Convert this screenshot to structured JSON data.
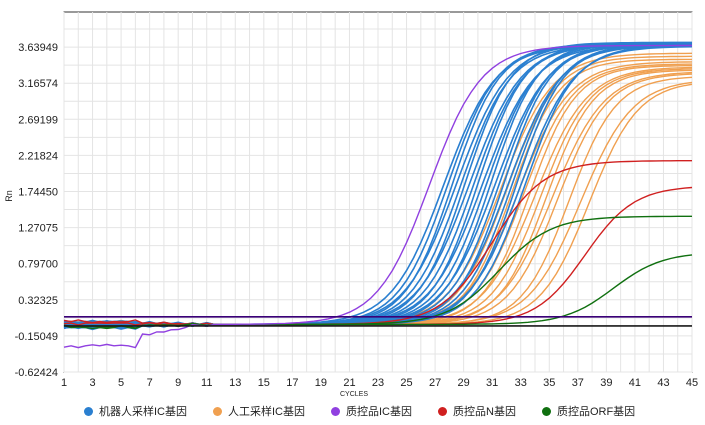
{
  "chart_data": {
    "type": "line",
    "title": "",
    "xlabel": "CYCLES",
    "ylabel": "Rn",
    "xlim": [
      1,
      45
    ],
    "ylim": [
      -0.62424,
      4.1
    ],
    "x_ticks": [
      1,
      3,
      5,
      7,
      9,
      11,
      13,
      15,
      17,
      19,
      21,
      23,
      25,
      27,
      29,
      31,
      33,
      35,
      37,
      39,
      41,
      43,
      45
    ],
    "y_ticks": [
      -0.62424,
      -0.15049,
      0.32325,
      0.797,
      1.27075,
      1.7445,
      2.21824,
      2.69199,
      3.16574,
      3.63949
    ],
    "y_tick_labels": [
      "-0.62424",
      "-0.15049",
      "0.32325",
      "0.79700",
      "1.27075",
      "1.74450",
      "2.21824",
      "2.69199",
      "3.16574",
      "3.63949"
    ],
    "threshold_lines": [
      {
        "y": 0.1,
        "color": "#3a0078"
      },
      {
        "y": -0.02,
        "color": "#1a1a1a"
      }
    ],
    "grid": true,
    "legend_position": "bottom",
    "series": [
      {
        "name": "机器人采样IC基因",
        "color": "#2a7fd0",
        "curves": [
          {
            "ct": 27.6,
            "max": 3.66
          },
          {
            "ct": 27.9,
            "max": 3.68
          },
          {
            "ct": 28.2,
            "max": 3.67
          },
          {
            "ct": 28.5,
            "max": 3.69
          },
          {
            "ct": 28.8,
            "max": 3.66
          },
          {
            "ct": 29.1,
            "max": 3.7
          },
          {
            "ct": 29.4,
            "max": 3.68
          },
          {
            "ct": 29.7,
            "max": 3.67
          },
          {
            "ct": 30.0,
            "max": 3.69
          },
          {
            "ct": 30.3,
            "max": 3.66
          },
          {
            "ct": 30.6,
            "max": 3.68
          },
          {
            "ct": 30.9,
            "max": 3.7
          },
          {
            "ct": 31.2,
            "max": 3.67
          },
          {
            "ct": 31.5,
            "max": 3.69
          },
          {
            "ct": 31.8,
            "max": 3.68
          },
          {
            "ct": 32.1,
            "max": 3.66
          },
          {
            "ct": 32.4,
            "max": 3.68
          },
          {
            "ct": 32.7,
            "max": 3.67
          },
          {
            "ct": 33.0,
            "max": 3.65
          },
          {
            "ct": 33.3,
            "max": 3.66
          }
        ]
      },
      {
        "name": "人工采样IC基因",
        "color": "#f0a050",
        "curves": [
          {
            "ct": 31.6,
            "max": 3.56
          },
          {
            "ct": 32.0,
            "max": 3.52
          },
          {
            "ct": 32.4,
            "max": 3.48
          },
          {
            "ct": 32.8,
            "max": 3.45
          },
          {
            "ct": 33.2,
            "max": 3.42
          },
          {
            "ct": 33.6,
            "max": 3.4
          },
          {
            "ct": 34.0,
            "max": 3.38
          },
          {
            "ct": 34.4,
            "max": 3.36
          },
          {
            "ct": 34.8,
            "max": 3.34
          },
          {
            "ct": 35.2,
            "max": 3.32
          },
          {
            "ct": 35.6,
            "max": 3.3
          },
          {
            "ct": 36.4,
            "max": 3.26
          },
          {
            "ct": 37.2,
            "max": 3.22
          },
          {
            "ct": 37.8,
            "max": 3.2
          }
        ]
      },
      {
        "name": "质控品IC基因",
        "color": "#9040e0",
        "curves": [
          {
            "ct": 26.6,
            "max": 3.66,
            "start": -0.28
          }
        ]
      },
      {
        "name": "质控品N基因",
        "color": "#d02020",
        "curves": [
          {
            "ct": 31.0,
            "max": 2.15
          },
          {
            "ct": 37.5,
            "max": 1.82
          }
        ]
      },
      {
        "name": "质控品ORF基因",
        "color": "#107010",
        "curves": [
          {
            "ct": 31.5,
            "max": 1.42
          },
          {
            "ct": 39.5,
            "max": 0.95
          }
        ]
      }
    ]
  }
}
